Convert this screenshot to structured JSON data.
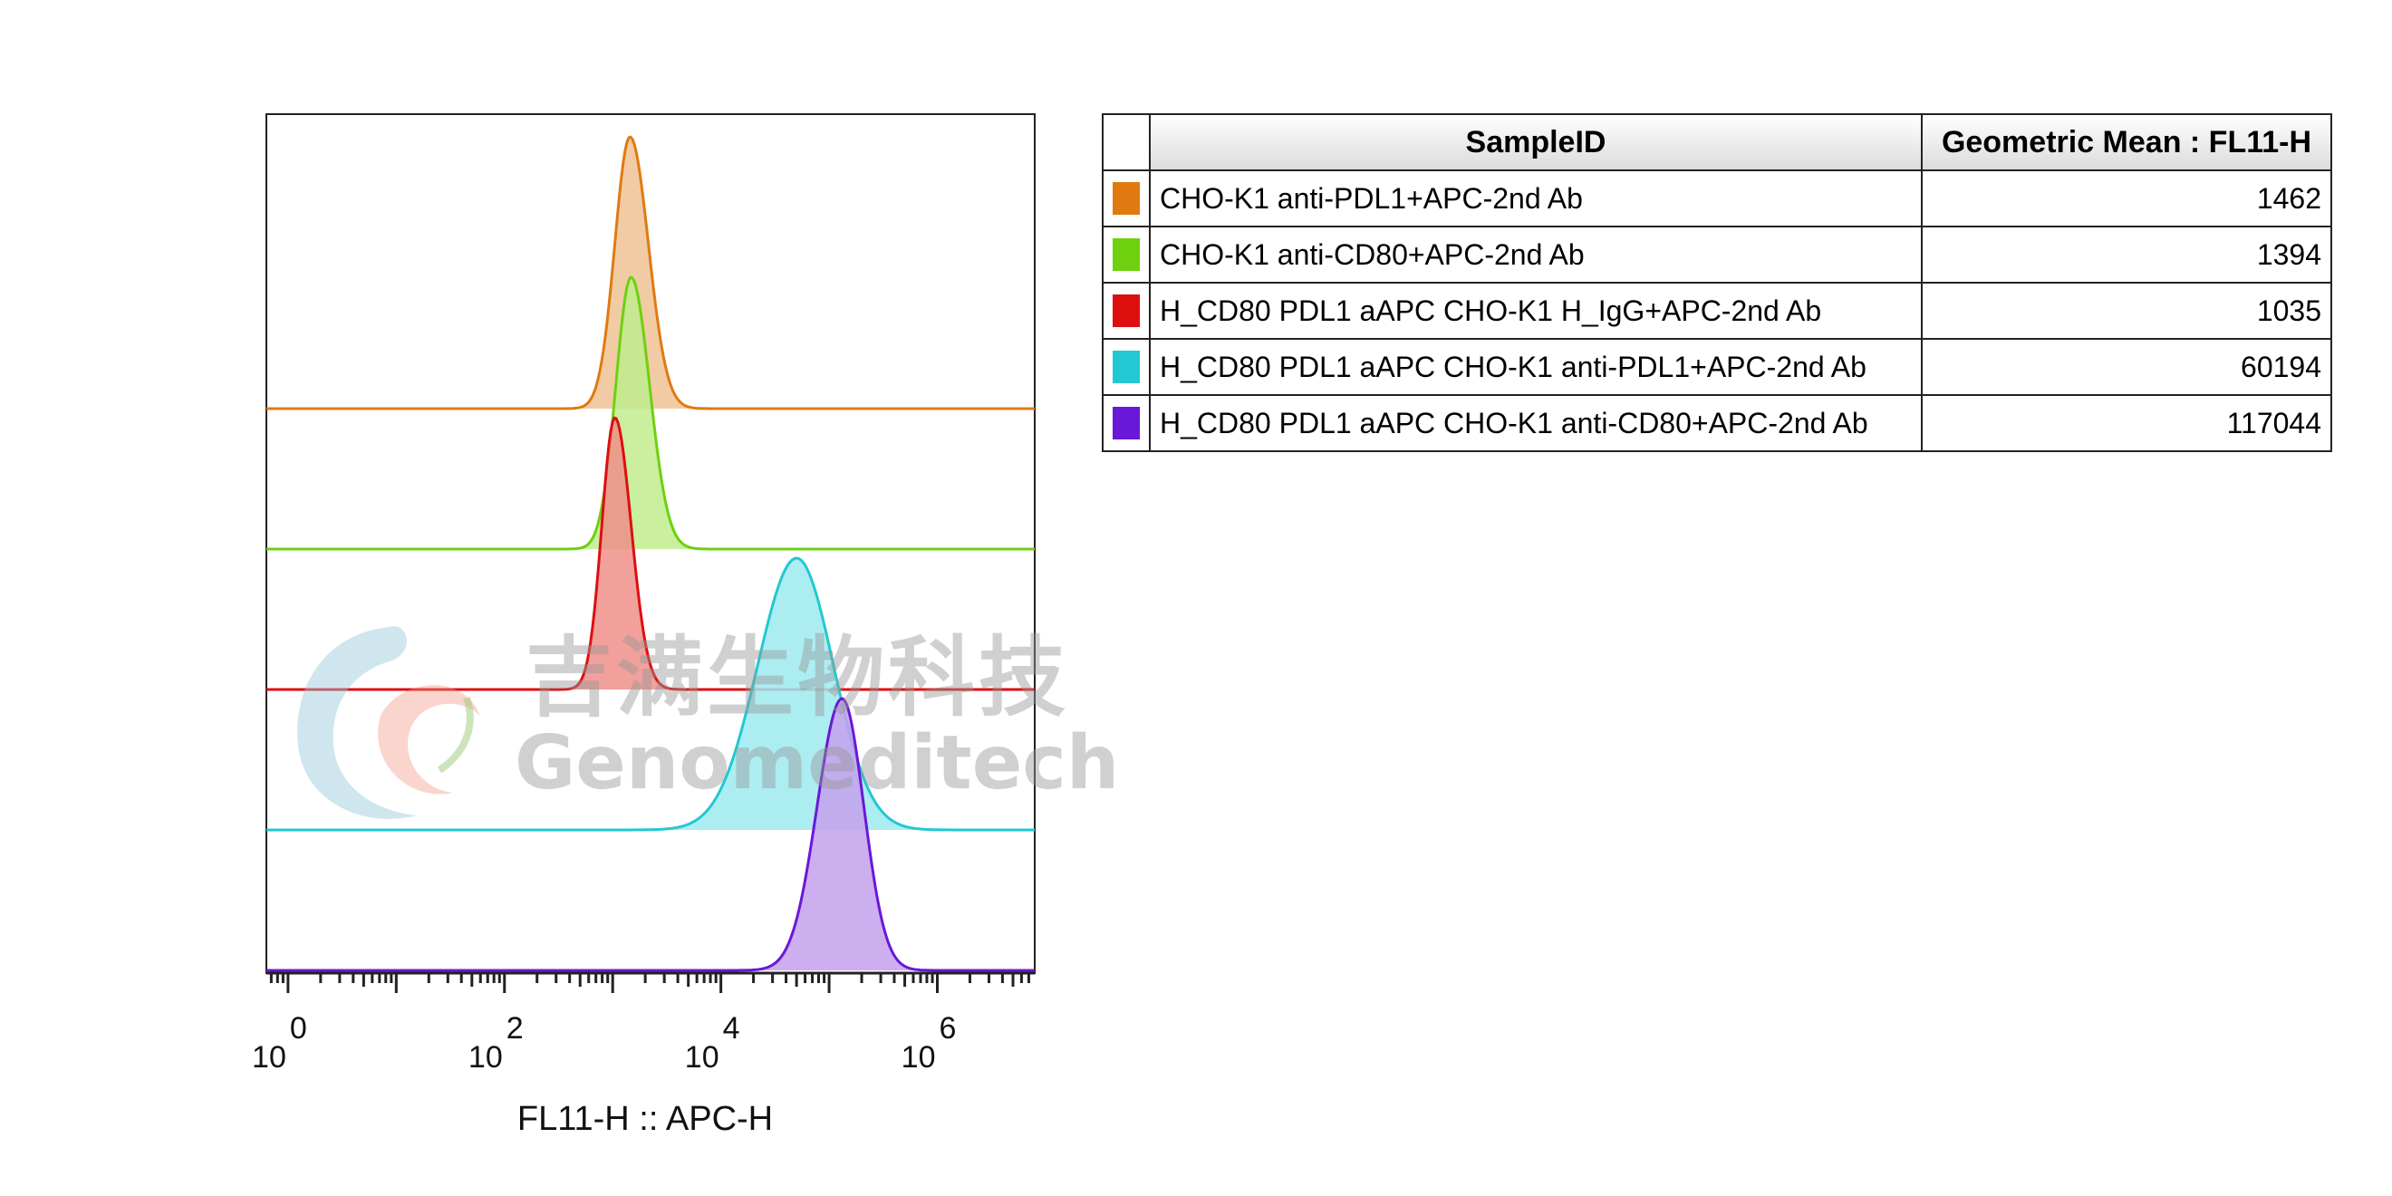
{
  "chart_data": {
    "type": "histogram-overlay",
    "xlabel": "FL11-H :: APC-H",
    "x_scale": "log",
    "x_ticks": [
      {
        "base": "10",
        "exp": "0",
        "value": 1
      },
      {
        "base": "10",
        "exp": "2",
        "value": 100
      },
      {
        "base": "10",
        "exp": "4",
        "value": 10000
      },
      {
        "base": "10",
        "exp": "6",
        "value": 1000000
      }
    ],
    "xlim_log10": [
      -0.2,
      6.9
    ],
    "series": [
      {
        "name": "CHO-K1 anti-PDL1+APC-2nd Ab",
        "color": "#e07a10",
        "fill": "#efc294",
        "peak_log10": 3.16,
        "sigma_left": 0.14,
        "sigma_right": 0.17,
        "geometric_mean": "1462"
      },
      {
        "name": "CHO-K1 anti-CD80+APC-2nd Ab",
        "color": "#6fd010",
        "fill": "#bfec8e",
        "peak_log10": 3.17,
        "sigma_left": 0.14,
        "sigma_right": 0.17,
        "geometric_mean": "1394"
      },
      {
        "name": "H_CD80 PDL1 aAPC CHO-K1 H_IgG+APC-2nd Ab",
        "color": "#dd0f0f",
        "fill": "#ee8f8a",
        "peak_log10": 3.02,
        "sigma_left": 0.12,
        "sigma_right": 0.15,
        "geometric_mean": "1035"
      },
      {
        "name": "H_CD80 PDL1 aAPC CHO-K1 anti-PDL1+APC-2nd Ab",
        "color": "#22c8d2",
        "fill": "#9eeaf0",
        "peak_log10": 4.7,
        "sigma_left": 0.36,
        "sigma_right": 0.34,
        "geometric_mean": "60194"
      },
      {
        "name": "H_CD80 PDL1 aAPC CHO-K1 anti-CD80+APC-2nd Ab",
        "color": "#6a18d8",
        "fill": "#c4a0ec",
        "peak_log10": 5.12,
        "sigma_left": 0.23,
        "sigma_right": 0.2,
        "geometric_mean": "117044"
      }
    ]
  },
  "table": {
    "headers": {
      "sample": "SampleID",
      "value": "Geometric Mean : FL11-H"
    }
  },
  "watermark": {
    "chinese": "吉满生物科技",
    "english": "Genomeditech"
  }
}
